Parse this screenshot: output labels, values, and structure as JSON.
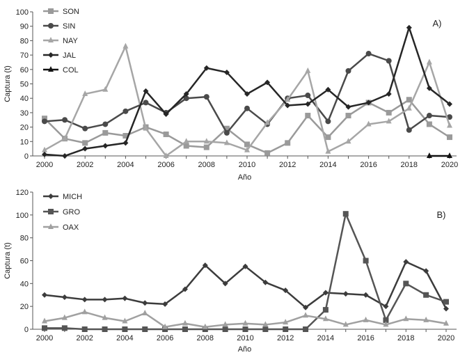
{
  "chart_data": [
    {
      "type": "line",
      "panel_label": "A)",
      "x": [
        2000,
        2001,
        2002,
        2003,
        2004,
        2005,
        2006,
        2007,
        2008,
        2009,
        2010,
        2011,
        2012,
        2013,
        2014,
        2015,
        2016,
        2017,
        2018,
        2019,
        2020
      ],
      "xticks": [
        "2000",
        "2002",
        "2004",
        "2006",
        "2008",
        "2010",
        "2012",
        "2014",
        "2016",
        "2018",
        "2020"
      ],
      "yticks": [
        "0",
        "10",
        "20",
        "30",
        "40",
        "50",
        "60",
        "70",
        "80",
        "90",
        "100"
      ],
      "xlabel": "Año",
      "ylabel": "Captura (t)",
      "xlim": [
        2000,
        2020
      ],
      "ylim": [
        0,
        100
      ],
      "legend_position": "top-left",
      "series": [
        {
          "name": "SON",
          "color": "#9a9a9a",
          "marker": "square",
          "values": [
            26,
            12,
            9,
            16,
            14,
            20,
            15,
            7,
            6,
            19,
            8,
            2,
            9,
            28,
            13,
            28,
            37,
            30,
            39,
            22,
            13
          ]
        },
        {
          "name": "SIN",
          "color": "#4a4a4a",
          "marker": "circle",
          "values": [
            24,
            25,
            19,
            22,
            31,
            37,
            30,
            40,
            41,
            16,
            33,
            22,
            40,
            42,
            24,
            59,
            71,
            66,
            18,
            28,
            27
          ]
        },
        {
          "name": "NAY",
          "color": "#a6a6a6",
          "marker": "triangle",
          "values": [
            4,
            12,
            43,
            46,
            76,
            19,
            0,
            10,
            10,
            9,
            4,
            23,
            39,
            59,
            3,
            10,
            22,
            24,
            33,
            65,
            21
          ]
        },
        {
          "name": "JAL",
          "color": "#262626",
          "marker": "diamond",
          "values": [
            1,
            0,
            5,
            7,
            9,
            45,
            29,
            43,
            61,
            58,
            43,
            51,
            35,
            36,
            46,
            34,
            37,
            43,
            89,
            47,
            36
          ]
        },
        {
          "name": "COL",
          "color": "#111111",
          "marker": "triangle",
          "values": [
            null,
            null,
            null,
            null,
            null,
            null,
            null,
            null,
            null,
            null,
            null,
            null,
            null,
            null,
            null,
            null,
            null,
            null,
            null,
            0,
            0
          ]
        }
      ]
    },
    {
      "type": "line",
      "panel_label": "B)",
      "x": [
        2000,
        2001,
        2002,
        2003,
        2004,
        2005,
        2006,
        2007,
        2008,
        2009,
        2010,
        2011,
        2012,
        2013,
        2014,
        2015,
        2016,
        2017,
        2018,
        2019,
        2020
      ],
      "xticks": [
        "2000",
        "2002",
        "2004",
        "2006",
        "2008",
        "2010",
        "2012",
        "2014",
        "2016",
        "2018",
        "2020"
      ],
      "yticks": [
        "0",
        "20",
        "40",
        "60",
        "80",
        "100",
        "120"
      ],
      "xlabel": "Año",
      "ylabel": "Captura (t)",
      "xlim": [
        2000,
        2020
      ],
      "ylim": [
        0,
        120
      ],
      "legend_position": "top-left",
      "series": [
        {
          "name": "MICH",
          "color": "#3c3c3c",
          "marker": "diamond",
          "values": [
            30,
            28,
            26,
            26,
            27,
            23,
            22,
            35,
            56,
            40,
            55,
            41,
            34,
            19,
            32,
            31,
            30,
            20,
            59,
            51,
            18
          ]
        },
        {
          "name": "GRO",
          "color": "#555555",
          "marker": "square",
          "values": [
            1,
            1,
            0,
            0,
            0,
            0,
            0,
            0,
            0,
            0,
            0,
            0,
            0,
            0,
            17,
            101,
            60,
            8,
            40,
            30,
            24
          ]
        },
        {
          "name": "OAX",
          "color": "#a0a0a0",
          "marker": "triangle",
          "values": [
            7,
            10,
            15,
            10,
            7,
            14,
            2,
            5,
            2,
            4,
            5,
            4,
            6,
            12,
            9,
            4,
            8,
            4,
            9,
            8,
            5
          ]
        }
      ]
    }
  ]
}
